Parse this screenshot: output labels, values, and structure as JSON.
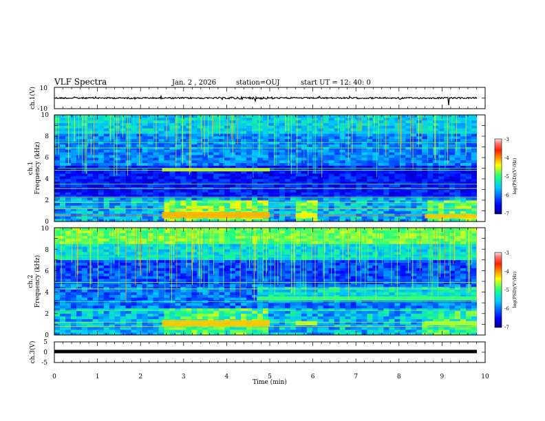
{
  "header": {
    "title": "VLF Spectra",
    "date": "Jan. 2 , 2026",
    "station": "station=OUJ",
    "start": "start UT = 12: 40: 0"
  },
  "chart_data": [
    {
      "type": "line",
      "name": "ch1-waveform",
      "ylabel": "ch.1(V)",
      "ylim": [
        -10,
        10
      ],
      "ytick_labels": [
        "10",
        "-10"
      ],
      "baseline": 0
    },
    {
      "type": "heatmap",
      "name": "ch1-spectrogram",
      "ylabel_line1": "ch.1",
      "ylabel_line2": "Frequency (kHz)",
      "ylim": [
        0,
        10
      ],
      "ytick_labels": [
        "0",
        "2",
        "4",
        "6",
        "8",
        "10"
      ],
      "colorbar": {
        "range": [
          -7,
          -3
        ],
        "tick_labels": [
          "-3",
          "-4",
          "-5",
          "-6",
          "-7"
        ],
        "label": "log(PSD)(V²/Hz)"
      }
    },
    {
      "type": "heatmap",
      "name": "ch2-spectrogram",
      "ylabel_line1": "ch.2",
      "ylabel_line2": "Frequency (kHz)",
      "ylim": [
        0,
        10
      ],
      "ytick_labels": [
        "0",
        "2",
        "4",
        "6",
        "8",
        "10"
      ],
      "colorbar": {
        "range": [
          -7,
          -3
        ],
        "tick_labels": [
          "-3",
          "-4",
          "-5",
          "-6",
          "-7"
        ],
        "label": "log(PSD)(V²/Hz)"
      }
    },
    {
      "type": "line",
      "name": "ch3-waveform",
      "ylabel": "ch.3(V)",
      "ylim": [
        -5,
        5
      ],
      "ytick_labels": [
        "5",
        "0",
        "-5"
      ],
      "level": -0.5
    }
  ],
  "xaxis": {
    "label": "Time (min)",
    "xlim": [
      0,
      10
    ],
    "tick_labels": [
      "0",
      "1",
      "2",
      "3",
      "4",
      "5",
      "6",
      "7",
      "8",
      "9",
      "10"
    ]
  }
}
